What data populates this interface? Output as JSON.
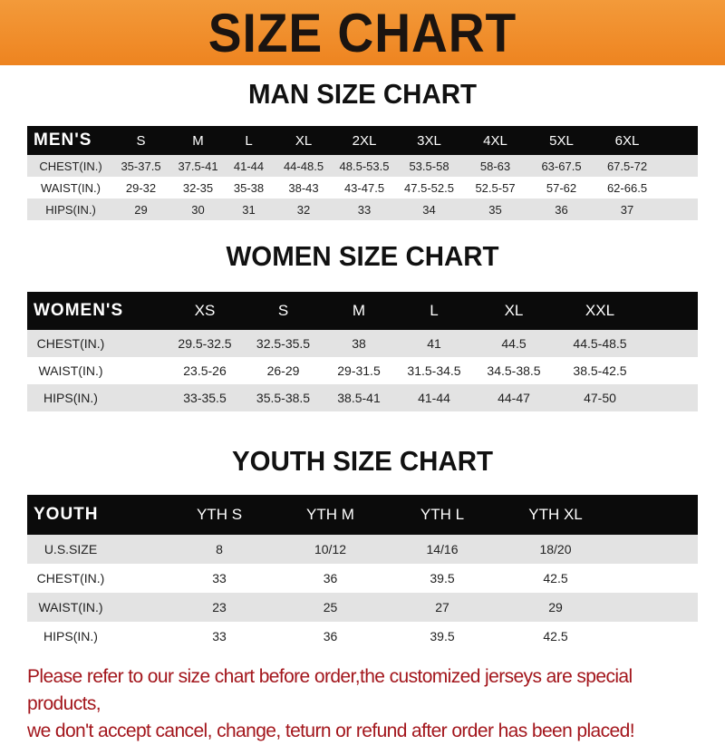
{
  "banner": {
    "title": "SIZE CHART",
    "color": "#ef8a26"
  },
  "men": {
    "title": "MAN SIZE CHART",
    "header": [
      "MEN'S",
      "S",
      "M",
      "L",
      "XL",
      "2XL",
      "3XL",
      "4XL",
      "5XL",
      "6XL"
    ],
    "rows": [
      [
        "CHEST(IN.)",
        "35-37.5",
        "37.5-41",
        "41-44",
        "44-48.5",
        "48.5-53.5",
        "53.5-58",
        "58-63",
        "63-67.5",
        "67.5-72"
      ],
      [
        "WAIST(IN.)",
        "29-32",
        "32-35",
        "35-38",
        "38-43",
        "43-47.5",
        "47.5-52.5",
        "52.5-57",
        "57-62",
        "62-66.5"
      ],
      [
        "HIPS(IN.)",
        "29",
        "30",
        "31",
        "32",
        "33",
        "34",
        "35",
        "36",
        "37"
      ]
    ]
  },
  "women": {
    "title": "WOMEN SIZE CHART",
    "header": [
      "WOMEN'S",
      "XS",
      "S",
      "M",
      "L",
      "XL",
      "XXL"
    ],
    "rows": [
      [
        "CHEST(IN.)",
        "29.5-32.5",
        "32.5-35.5",
        "38",
        "41",
        "44.5",
        "44.5-48.5"
      ],
      [
        "WAIST(IN.)",
        "23.5-26",
        "26-29",
        "29-31.5",
        "31.5-34.5",
        "34.5-38.5",
        "38.5-42.5"
      ],
      [
        "HIPS(IN.)",
        "33-35.5",
        "35.5-38.5",
        "38.5-41",
        "41-44",
        "44-47",
        "47-50"
      ]
    ]
  },
  "youth": {
    "title": "YOUTH SIZE CHART",
    "header": [
      "YOUTH",
      "YTH S",
      "YTH M",
      "YTH L",
      "YTH XL"
    ],
    "rows": [
      [
        "U.S.SIZE",
        "8",
        "10/12",
        "14/16",
        "18/20"
      ],
      [
        "CHEST(IN.)",
        "33",
        "36",
        "39.5",
        "42.5"
      ],
      [
        "WAIST(IN.)",
        "23",
        "25",
        "27",
        "29"
      ],
      [
        "HIPS(IN.)",
        "33",
        "36",
        "39.5",
        "42.5"
      ]
    ]
  },
  "note": {
    "line1": "Please refer to our size chart before order,the customized jerseys are special products,",
    "line2": "we don't accept cancel, change, teturn or refund after order has been placed!",
    "color": "#a3161c"
  }
}
